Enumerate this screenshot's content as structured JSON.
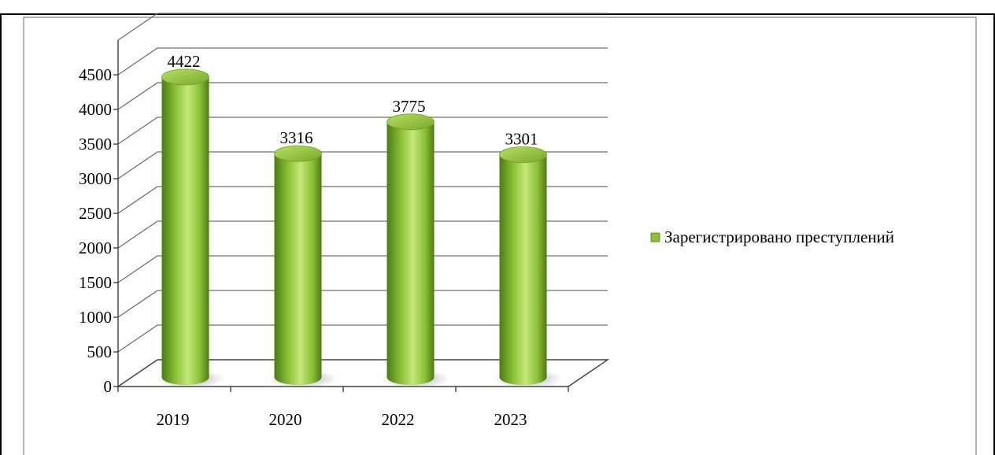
{
  "chart_data": {
    "type": "bar",
    "categories": [
      "2019",
      "2020",
      "2022",
      "2023"
    ],
    "series": [
      {
        "name": "Зарегистрировано преступлений",
        "values": [
          4422,
          3316,
          3775,
          3301
        ]
      }
    ],
    "data_labels": [
      "4422",
      "3316",
      "3775",
      "3301"
    ],
    "y_ticks": [
      "0",
      "500",
      "1000",
      "1500",
      "2000",
      "2500",
      "3000",
      "3500",
      "4000",
      "4500"
    ],
    "ylim": [
      0,
      5000
    ],
    "title": "",
    "xlabel": "",
    "ylabel": "",
    "grid": true,
    "legend_position": "right",
    "bar_shape": "3d-cylinder",
    "colors": {
      "bar": "#8cc236",
      "bar_dark": "#4e7a14",
      "bar_light": "#c4e87a",
      "top": "#9fd146"
    }
  },
  "legend": {
    "label": "Зарегистрировано преступлений"
  }
}
